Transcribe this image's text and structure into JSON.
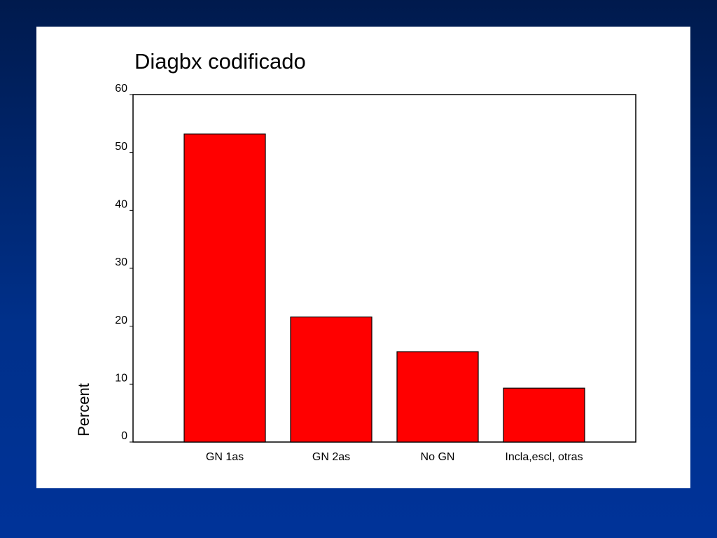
{
  "chart_data": {
    "type": "bar",
    "title": "Diagbx codificado",
    "y_label": "Percent",
    "categories": [
      "GN 1as",
      "GN 2as",
      "No GN",
      "Incla,escl, otras"
    ],
    "values": [
      53.2,
      21.6,
      15.6,
      9.3
    ],
    "color": "#ff0000",
    "ylim": [
      0,
      60
    ],
    "yticks": [
      0,
      10,
      20,
      30,
      40,
      50,
      60
    ],
    "grid": false
  }
}
